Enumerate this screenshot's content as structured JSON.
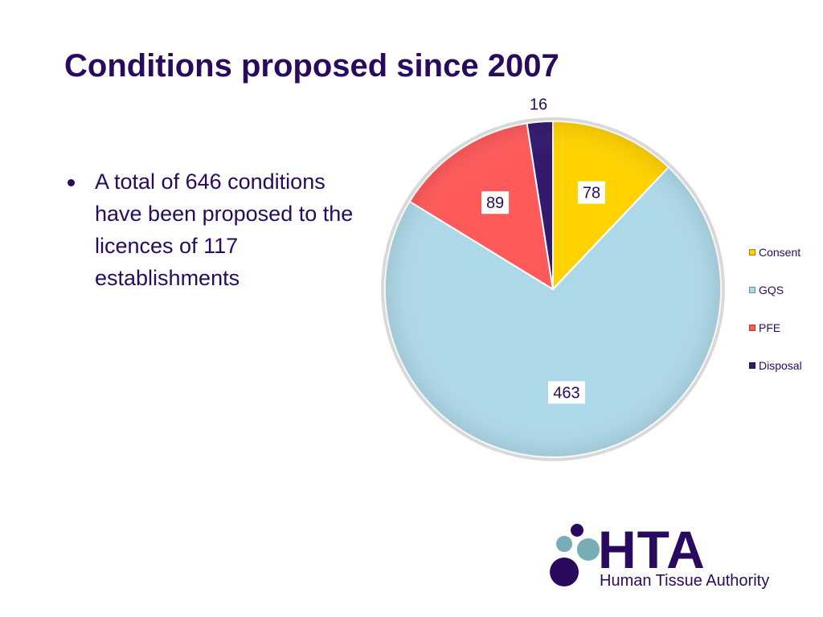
{
  "slide": {
    "title": "Conditions proposed since 2007",
    "bullets": [
      "A total of 646 conditions have been proposed to the licences of 117 establishments"
    ]
  },
  "chart_data": {
    "type": "pie",
    "title": "",
    "categories": [
      "Consent",
      "GQS",
      "PFE",
      "Disposal"
    ],
    "values": [
      78,
      463,
      89,
      16
    ],
    "colors": [
      "#ffd200",
      "#add8e8",
      "#ff5a5a",
      "#341a6e"
    ],
    "legend_position": "right",
    "data_labels": true
  },
  "logo": {
    "main": "HTA",
    "sub": "Human Tissue Authority",
    "colors": [
      "#2a0a5e",
      "#79adb6"
    ]
  }
}
